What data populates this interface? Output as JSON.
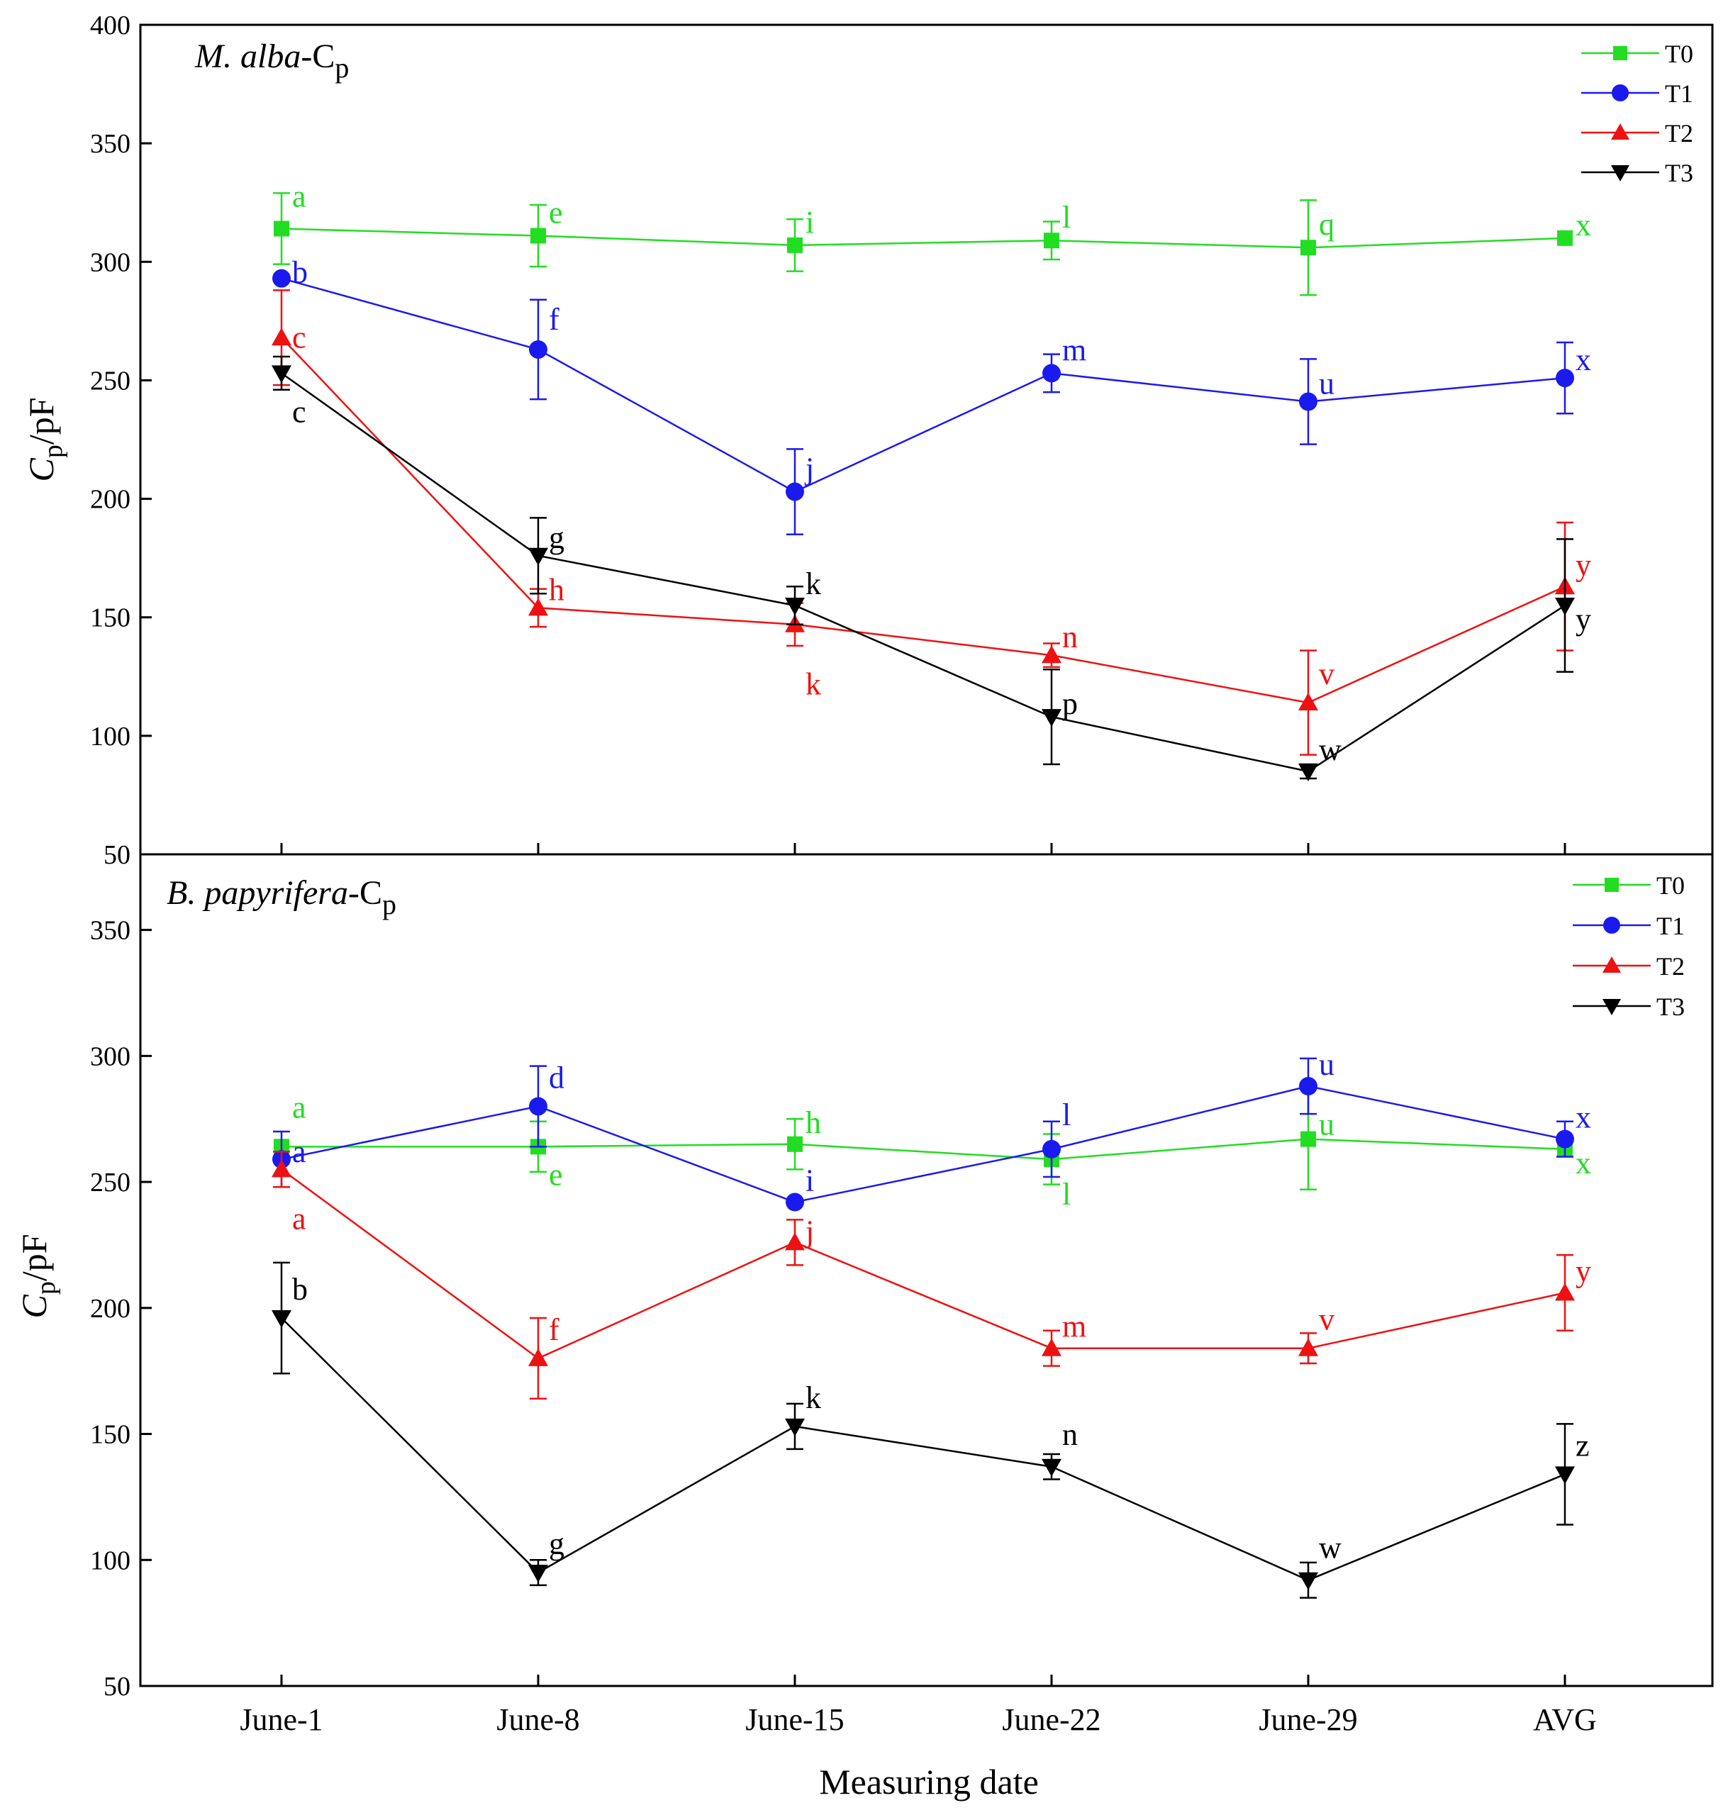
{
  "chart_data": [
    {
      "type": "line",
      "title_italic": "M. alba",
      "title_rest": "-C",
      "title_sub": "p",
      "ylabel_main": "C",
      "ylabel_sub": "p",
      "ylabel_rest": "/pF",
      "xlabel": "Measuring date",
      "categories": [
        "June-1",
        "June-8",
        "June-15",
        "June-22",
        "June-29",
        "AVG"
      ],
      "ylim": [
        50,
        400
      ],
      "yticks": [
        50,
        100,
        150,
        200,
        250,
        300,
        350,
        400
      ],
      "legend_position": "top-right",
      "series": [
        {
          "name": "T0",
          "color": "#22dd22",
          "marker": "square",
          "values": [
            314,
            311,
            307,
            309,
            306,
            310
          ],
          "errors": [
            15,
            13,
            11,
            8,
            20,
            0
          ],
          "letters": [
            "a",
            "e",
            "i",
            "l",
            "q",
            "x"
          ]
        },
        {
          "name": "T1",
          "color": "#1a1aee",
          "marker": "circle",
          "values": [
            293,
            263,
            203,
            253,
            241,
            251
          ],
          "errors": [
            0,
            21,
            18,
            8,
            18,
            15
          ],
          "letters": [
            "b",
            "f",
            "j",
            "m",
            "u",
            "x"
          ]
        },
        {
          "name": "T2",
          "color": "#ee1111",
          "marker": "triangle-up",
          "values": [
            268,
            154,
            147,
            134,
            114,
            163
          ],
          "errors": [
            20,
            8,
            9,
            5,
            22,
            27
          ],
          "letters": [
            "c",
            "h",
            "k",
            "n",
            "v",
            "y"
          ]
        },
        {
          "name": "T3",
          "color": "#000000",
          "marker": "triangle-down",
          "values": [
            253,
            176,
            155,
            108,
            85,
            155
          ],
          "errors": [
            7,
            16,
            8,
            20,
            3,
            28
          ],
          "letters": [
            "c",
            "g",
            "k",
            "p",
            "w",
            "y"
          ]
        }
      ]
    },
    {
      "type": "line",
      "title_italic": "B. papyrifera",
      "title_rest": "-C",
      "title_sub": "p",
      "ylabel_main": "C",
      "ylabel_sub": "p",
      "ylabel_rest": "/pF",
      "xlabel": "Measuring date",
      "categories": [
        "June-1",
        "June-8",
        "June-15",
        "June-22",
        "June-29",
        "AVG"
      ],
      "ylim": [
        50,
        380
      ],
      "yticks": [
        50,
        100,
        150,
        200,
        250,
        300,
        350
      ],
      "legend_position": "top-right",
      "series": [
        {
          "name": "T0",
          "color": "#22dd22",
          "marker": "square",
          "values": [
            264,
            264,
            265,
            259,
            267,
            263
          ],
          "errors": [
            0,
            10,
            10,
            10,
            20,
            3
          ],
          "letters": [
            "a",
            "e",
            "h",
            "l",
            "u",
            "x"
          ]
        },
        {
          "name": "T1",
          "color": "#1a1aee",
          "marker": "circle",
          "values": [
            259,
            280,
            242,
            263,
            288,
            267
          ],
          "errors": [
            11,
            16,
            0,
            11,
            11,
            7
          ],
          "letters": [
            "a",
            "d",
            "i",
            "l",
            "u",
            "x"
          ]
        },
        {
          "name": "T2",
          "color": "#ee1111",
          "marker": "triangle-up",
          "values": [
            255,
            180,
            226,
            184,
            184,
            206
          ],
          "errors": [
            7,
            16,
            9,
            7,
            6,
            15
          ],
          "letters": [
            "a",
            "f",
            "j",
            "m",
            "v",
            "y"
          ]
        },
        {
          "name": "T3",
          "color": "#000000",
          "marker": "triangle-down",
          "values": [
            196,
            95,
            153,
            137,
            92,
            134
          ],
          "errors": [
            22,
            5,
            9,
            5,
            7,
            20
          ],
          "letters": [
            "b",
            "g",
            "k",
            "n",
            "w",
            "z"
          ]
        }
      ]
    }
  ]
}
